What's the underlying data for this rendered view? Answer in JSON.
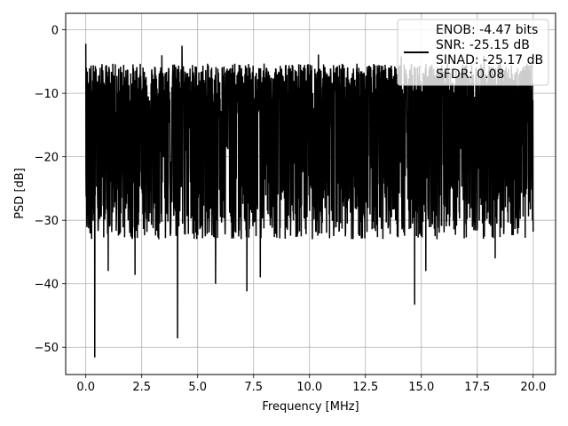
{
  "chart_data": {
    "type": "line",
    "title": "",
    "xlabel": "Frequency [MHz]",
    "ylabel": "PSD [dB]",
    "xlim": [
      -0.9,
      21.0
    ],
    "ylim": [
      -54.3,
      2.6
    ],
    "xticks": [
      0.0,
      2.5,
      5.0,
      7.5,
      10.0,
      12.5,
      15.0,
      17.5,
      20.0
    ],
    "xtick_labels": [
      "0.0",
      "2.5",
      "5.0",
      "7.5",
      "10.0",
      "12.5",
      "15.0",
      "17.5",
      "20.0"
    ],
    "yticks": [
      0,
      -10,
      -20,
      -30,
      -40,
      -50
    ],
    "ytick_labels": [
      "0",
      "−10",
      "−20",
      "−30",
      "−40",
      "−50"
    ],
    "grid": true,
    "legend": {
      "placement": "top-right",
      "entries": [
        "ENOB: -4.47 bits",
        "SNR: -25.15 dB",
        "SINAD: -25.17 dB",
        "SFDR: 0.08"
      ]
    },
    "series": [
      {
        "color": "#000000",
        "x_range": [
          0.0,
          20.0
        ],
        "baseline_db": -16.5,
        "upper_envelope_db": -8.0,
        "lower_envelope_db": -30.0,
        "peaks": [
          {
            "x": 0.0,
            "y": -2.2
          },
          {
            "x": 4.3,
            "y": -2.5
          },
          {
            "x": 3.4,
            "y": -4.0
          },
          {
            "x": 10.4,
            "y": -3.9
          },
          {
            "x": 14.1,
            "y": -4.2
          },
          {
            "x": 17.8,
            "y": -4.1
          }
        ],
        "dips": [
          {
            "x": 0.4,
            "y": -51.6
          },
          {
            "x": 4.1,
            "y": -48.6
          },
          {
            "x": 14.7,
            "y": -43.3
          },
          {
            "x": 2.2,
            "y": -38.6
          },
          {
            "x": 7.2,
            "y": -41.2
          },
          {
            "x": 5.8,
            "y": -40.0
          },
          {
            "x": 1.0,
            "y": -38.0
          },
          {
            "x": 18.3,
            "y": -36.0
          },
          {
            "x": 15.2,
            "y": -38.0
          },
          {
            "x": 7.8,
            "y": -39.0
          }
        ]
      }
    ]
  }
}
